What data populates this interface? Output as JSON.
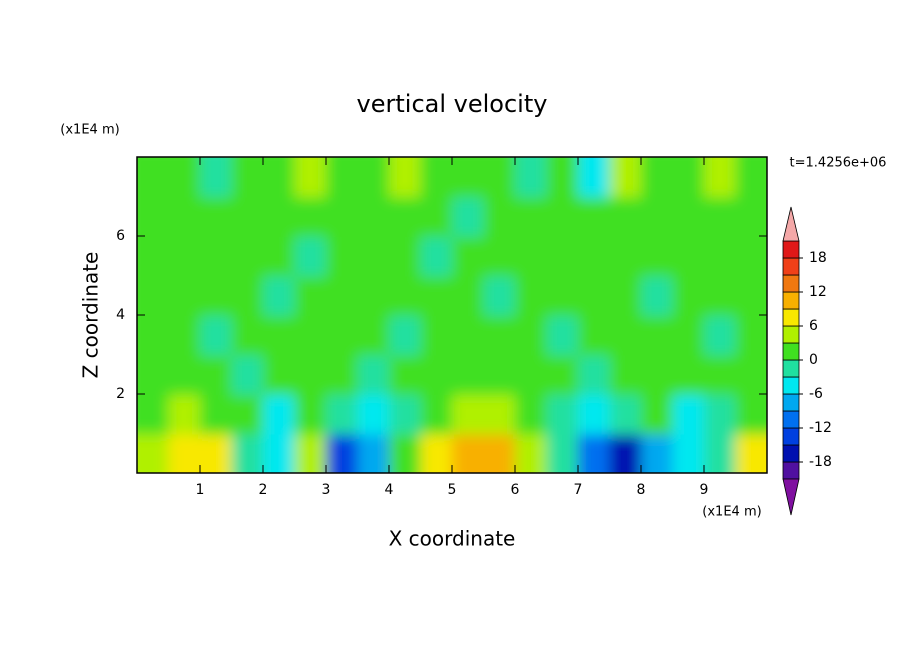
{
  "chart_data": {
    "type": "contour",
    "title": "vertical velocity",
    "x_label": "X coordinate",
    "y_label": "Z coordinate",
    "x_unit": "(x1E4 m)",
    "y_unit": "(x1E4 m)",
    "time_label": "t=1.4256e+06",
    "xlim": [
      0,
      10
    ],
    "ylim": [
      0,
      8
    ],
    "xticks": [
      1,
      2,
      3,
      4,
      5,
      6,
      7,
      8,
      9
    ],
    "yticks": [
      2,
      4,
      6
    ],
    "x": [
      0.25,
      0.75,
      1.25,
      1.75,
      2.25,
      2.75,
      3.25,
      3.75,
      4.25,
      4.75,
      5.25,
      5.75,
      6.25,
      6.75,
      7.25,
      7.75,
      8.25,
      8.75,
      9.25,
      9.75
    ],
    "z": [
      0.5,
      1.5,
      2.5,
      3.5,
      4.5,
      5.5,
      6.5,
      7.5
    ],
    "values": [
      [
        5,
        7,
        6,
        -2,
        -4,
        5,
        -14,
        -8,
        0,
        6,
        9,
        10,
        3,
        -3,
        -12,
        -16,
        -9,
        -5,
        -1,
        6
      ],
      [
        2,
        3,
        2,
        0,
        -4,
        1,
        -2,
        -5,
        -1,
        2,
        3,
        4,
        1,
        -1,
        -6,
        -3,
        2,
        -4,
        -1,
        0
      ],
      [
        1,
        0,
        1,
        -1,
        1,
        0,
        1,
        -1,
        0,
        1,
        2,
        1,
        0,
        1,
        -1,
        0,
        1,
        0,
        1,
        0
      ],
      [
        0,
        1,
        -1,
        1,
        0,
        1,
        0,
        1,
        -1,
        0,
        1,
        0,
        1,
        -1,
        0,
        1,
        0,
        1,
        -1,
        0
      ],
      [
        1,
        0,
        1,
        0,
        -1,
        0,
        1,
        0,
        1,
        1,
        0,
        -1,
        0,
        1,
        0,
        1,
        -1,
        0,
        1,
        0
      ],
      [
        0,
        1,
        0,
        1,
        1,
        -1,
        0,
        1,
        0,
        -1,
        1,
        0,
        1,
        0,
        1,
        0,
        1,
        1,
        0,
        1
      ],
      [
        1,
        0,
        1,
        2,
        0,
        1,
        0,
        1,
        1,
        0,
        -1,
        1,
        0,
        1,
        0,
        2,
        1,
        0,
        1,
        0
      ],
      [
        0,
        2,
        -1,
        1,
        0,
        4,
        1,
        0,
        3,
        1,
        0,
        2,
        -1,
        1,
        -4,
        3,
        1,
        0,
        4,
        1
      ]
    ],
    "levels": [
      -21,
      -18,
      -15,
      -12,
      -9,
      -6,
      -3,
      0,
      3,
      6,
      9,
      12,
      15,
      18,
      21
    ],
    "colors": [
      "#5010a0",
      "#0010b0",
      "#0040e0",
      "#0070f0",
      "#00a8f0",
      "#00e8f0",
      "#20e0a0",
      "#40e020",
      "#b0f000",
      "#f8e800",
      "#f8b000",
      "#f07810",
      "#f04018",
      "#e01818"
    ],
    "under_color": "#8010a0",
    "over_color": "#f4a8a8",
    "cbar_ticks": [
      -18,
      -12,
      -6,
      0,
      6,
      12,
      18
    ]
  }
}
